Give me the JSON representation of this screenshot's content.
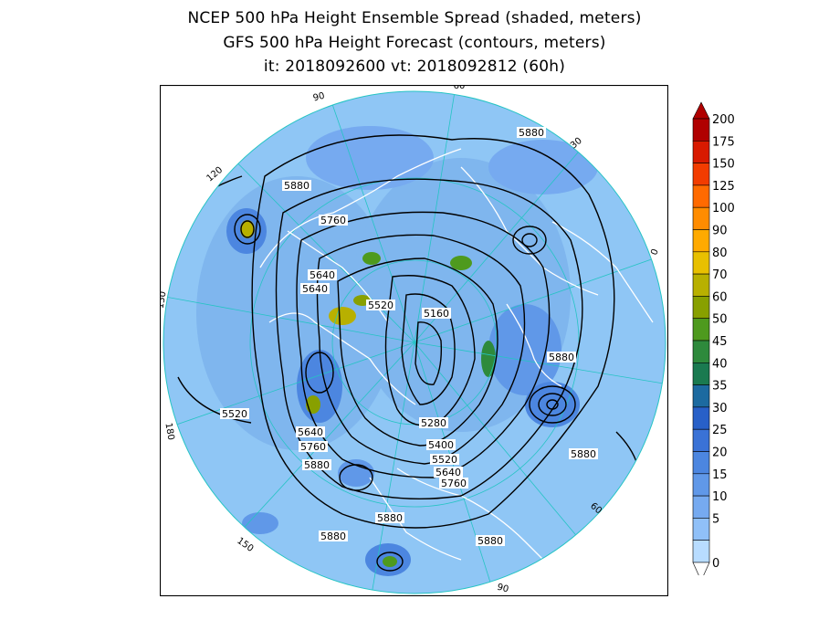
{
  "title": {
    "line1": "NCEP 500 hPa Height Ensemble Spread (shaded, meters)",
    "line2": "GFS 500 hPa Height Forecast (contours, meters)",
    "line3": "it: 2018092600       vt: 2018092812 (60h)"
  },
  "colorbar": {
    "levels": [
      "200",
      "175",
      "150",
      "125",
      "100",
      "90",
      "80",
      "70",
      "60",
      "50",
      "45",
      "40",
      "35",
      "30",
      "25",
      "20",
      "15",
      "10",
      "5",
      "0"
    ],
    "colors": [
      "#b00000",
      "#d81a00",
      "#f23c00",
      "#ff6a00",
      "#ff8c00",
      "#ffaa00",
      "#e8c000",
      "#b8b000",
      "#88a000",
      "#4e9a1e",
      "#2e8a3c",
      "#1a7a50",
      "#1c6aa0",
      "#2860c8",
      "#3a72d6",
      "#4c86e0",
      "#6098e8",
      "#76aaf0",
      "#90c0f8",
      "#b8dcff"
    ]
  },
  "map": {
    "projection": "north polar stereographic",
    "background_color": "#8fc6f5",
    "outer_color": "#ffffff",
    "longitude_labels": [
      "60",
      "30",
      "0",
      "30",
      "60",
      "90",
      "120",
      "150",
      "180",
      "150",
      "120",
      "90"
    ],
    "contour_labels": [
      "5880",
      "5880",
      "5760",
      "5640",
      "5640",
      "5520",
      "5160",
      "5880",
      "5280",
      "5400",
      "5520",
      "5640",
      "5760",
      "5880",
      "5880",
      "5880",
      "5880",
      "5520",
      "5640",
      "5760",
      "5880"
    ]
  }
}
